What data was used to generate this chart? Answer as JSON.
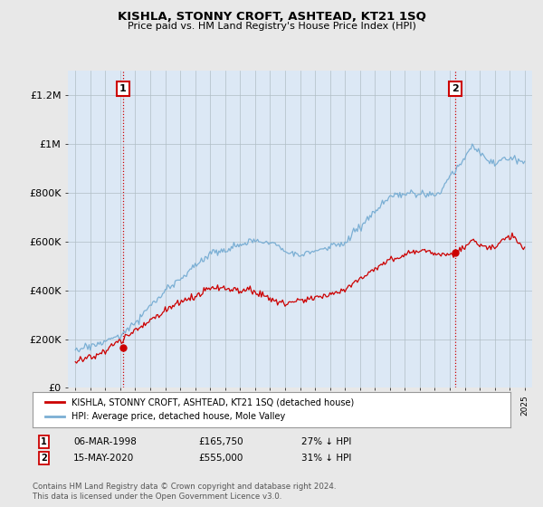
{
  "title": "KISHLA, STONNY CROFT, ASHTEAD, KT21 1SQ",
  "subtitle": "Price paid vs. HM Land Registry's House Price Index (HPI)",
  "legend_label_red": "KISHLA, STONNY CROFT, ASHTEAD, KT21 1SQ (detached house)",
  "legend_label_blue": "HPI: Average price, detached house, Mole Valley",
  "annotation1_date": "06-MAR-1998",
  "annotation1_price": "£165,750",
  "annotation1_hpi": "27% ↓ HPI",
  "annotation2_date": "15-MAY-2020",
  "annotation2_price": "£555,000",
  "annotation2_hpi": "31% ↓ HPI",
  "footnote": "Contains HM Land Registry data © Crown copyright and database right 2024.\nThis data is licensed under the Open Government Licence v3.0.",
  "ylim": [
    0,
    1300000
  ],
  "yticks": [
    0,
    200000,
    400000,
    600000,
    800000,
    1000000,
    1200000
  ],
  "ytick_labels": [
    "£0",
    "£200K",
    "£400K",
    "£600K",
    "£800K",
    "£1M",
    "£1.2M"
  ],
  "color_red": "#cc0000",
  "color_blue": "#7bafd4",
  "bg_color": "#e8e8e8",
  "plot_bg_color": "#dce8f5",
  "annotation_box_color": "#cc0000",
  "sale1_x": 1998.17,
  "sale1_y": 165750,
  "sale2_x": 2020.37,
  "sale2_y": 555000,
  "xmin": 1994.5,
  "xmax": 2025.5
}
